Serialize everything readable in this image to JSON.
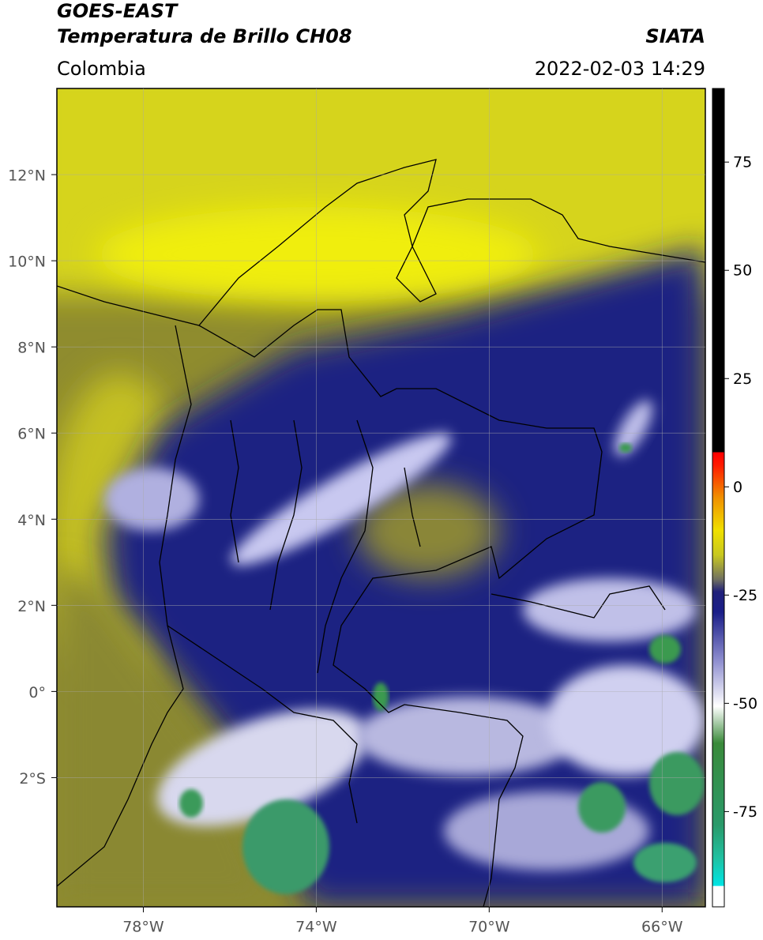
{
  "header": {
    "title": "GOES-EAST",
    "subtitle": "Temperatura de Brillo CH08",
    "source": "SIATA",
    "region": "Colombia",
    "datetime": "2022-02-03 14:29"
  },
  "map": {
    "lon_lim": [
      -80,
      -65
    ],
    "lat_lim": [
      -5,
      14
    ],
    "lat_ticks": [
      {
        "value": 12,
        "label": "12°N"
      },
      {
        "value": 10,
        "label": "10°N"
      },
      {
        "value": 8,
        "label": "8°N"
      },
      {
        "value": 6,
        "label": "6°N"
      },
      {
        "value": 4,
        "label": "4°N"
      },
      {
        "value": 2,
        "label": "2°N"
      },
      {
        "value": 0,
        "label": "0°"
      },
      {
        "value": -2,
        "label": "2°S"
      }
    ],
    "lon_ticks": [
      {
        "value": -78,
        "label": "78°W"
      },
      {
        "value": -74,
        "label": "74°W"
      },
      {
        "value": -70,
        "label": "70°W"
      },
      {
        "value": -66,
        "label": "66°W"
      }
    ]
  },
  "colorbar": {
    "lim": [
      -97,
      92
    ],
    "ticks": [
      75,
      50,
      25,
      0,
      -25,
      -50,
      -75
    ]
  }
}
